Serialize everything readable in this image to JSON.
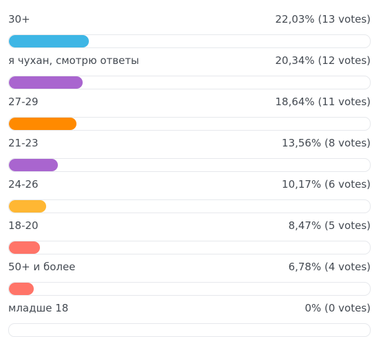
{
  "poll": {
    "options": [
      {
        "label": "30+",
        "result": "22,03% (13 votes)",
        "fraction": 0.2203,
        "color": "#3db6e5"
      },
      {
        "label": "я чухан, смотрю ответы",
        "result": "20,34% (12 votes)",
        "fraction": 0.2034,
        "color": "#a965cf"
      },
      {
        "label": "27-29",
        "result": "18,64% (11 votes)",
        "fraction": 0.1864,
        "color": "#ff8a00"
      },
      {
        "label": "21-23",
        "result": "13,56% (8 votes)",
        "fraction": 0.1356,
        "color": "#a965cf"
      },
      {
        "label": "24-26",
        "result": "10,17% (6 votes)",
        "fraction": 0.1017,
        "color": "#ffb733"
      },
      {
        "label": "18-20",
        "result": "8,47% (5 votes)",
        "fraction": 0.0847,
        "color": "#ff7468"
      },
      {
        "label": "50+ и более",
        "result": "6,78% (4 votes)",
        "fraction": 0.0678,
        "color": "#ff7468"
      },
      {
        "label": "младше 18",
        "result": "0% (0 votes)",
        "fraction": 0,
        "color": "#a965cf"
      }
    ]
  }
}
